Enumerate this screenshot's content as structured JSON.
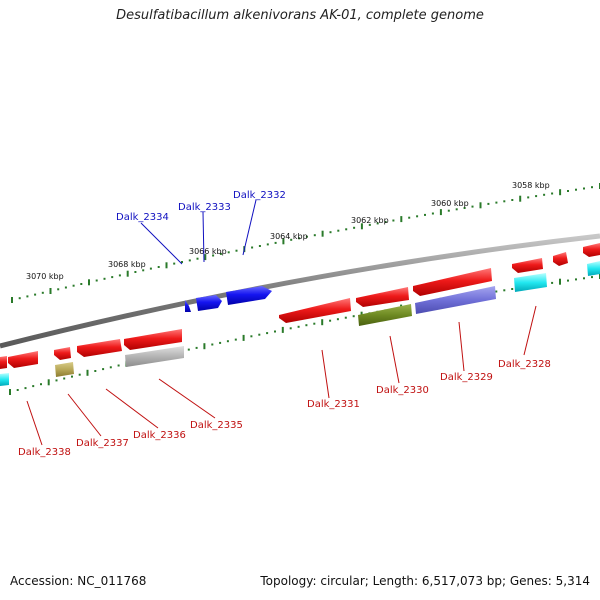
{
  "title": "Desulfatibacillum alkenivorans AK-01, complete genome",
  "footer": {
    "accession": "Accession: NC_011768",
    "info": "Topology: circular; Length: 6,517,073 bp; Genes: 5,314"
  },
  "ticks": [
    {
      "label": "3070 kbp"
    },
    {
      "label": "3068 kbp"
    },
    {
      "label": "3066 kbp"
    },
    {
      "label": "3064 kbp"
    },
    {
      "label": "3062 kbp"
    },
    {
      "label": "3060 kbp"
    },
    {
      "label": "3058 kbp"
    }
  ],
  "genes": [
    {
      "name": "Dalk_2334",
      "strand": "plus"
    },
    {
      "name": "Dalk_2333",
      "strand": "plus"
    },
    {
      "name": "Dalk_2332",
      "strand": "plus"
    },
    {
      "name": "Dalk_2331",
      "strand": "minus"
    },
    {
      "name": "Dalk_2330",
      "strand": "minus"
    },
    {
      "name": "Dalk_2329",
      "strand": "minus"
    },
    {
      "name": "Dalk_2328",
      "strand": "minus"
    },
    {
      "name": "Dalk_2335",
      "strand": "minus"
    },
    {
      "name": "Dalk_2336",
      "strand": "minus"
    },
    {
      "name": "Dalk_2337",
      "strand": "minus"
    },
    {
      "name": "Dalk_2338",
      "strand": "minus"
    }
  ],
  "colors": {
    "plus_gene": "#1010e0",
    "minus_gene": "#e01010",
    "backbone": "#888888",
    "tick": "#2a7a2a",
    "label_plus": "#1010c0",
    "label_minus": "#c01010"
  }
}
